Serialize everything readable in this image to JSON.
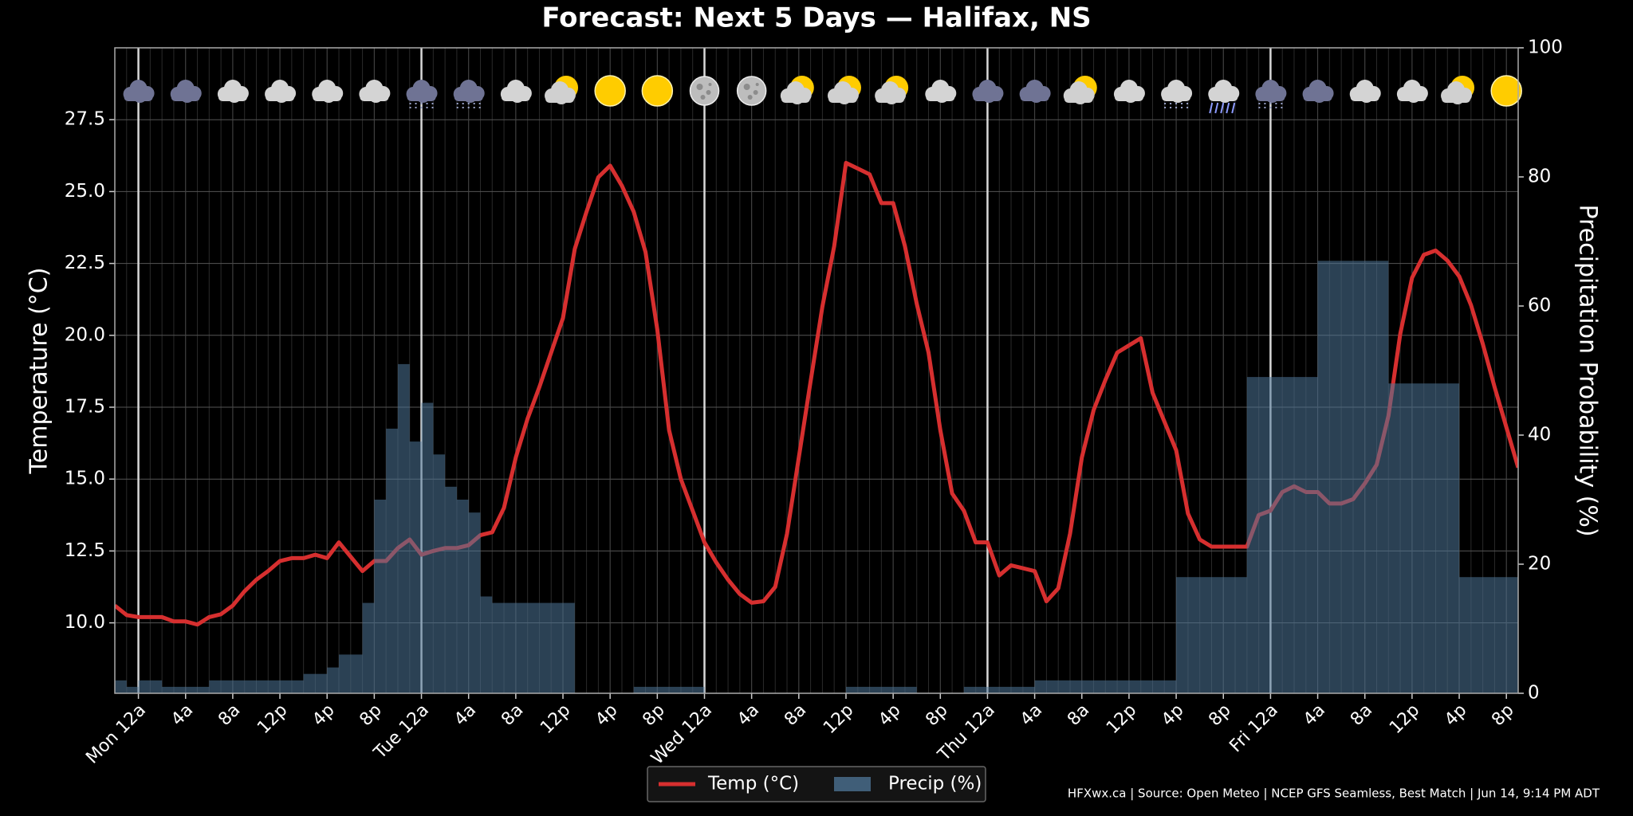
{
  "chart_data": {
    "type": "combo",
    "title": "Forecast: Next 5 Days — Halifax, NS",
    "y_label": "Temperature (°C)",
    "y2_label": "Precipitation Probability (%)",
    "source": "HFXwx.ca | Source: Open Meteo | NCEP GFS Seamless, Best Match | Jun 14, 9:14 PM ADT",
    "x": [
      -2,
      -1,
      0,
      1,
      2,
      3,
      4,
      5,
      6,
      7,
      8,
      9,
      10,
      11,
      12,
      13,
      14,
      15,
      16,
      17,
      18,
      19,
      20,
      21,
      22,
      23,
      24,
      25,
      26,
      27,
      28,
      29,
      30,
      31,
      32,
      33,
      34,
      35,
      36,
      37,
      38,
      39,
      40,
      41,
      42,
      43,
      44,
      45,
      46,
      47,
      48,
      49,
      50,
      51,
      52,
      53,
      54,
      55,
      56,
      57,
      58,
      59,
      60,
      61,
      62,
      63,
      64,
      65,
      66,
      67,
      68,
      69,
      70,
      71,
      72,
      73,
      74,
      75,
      76,
      77,
      78,
      79,
      80,
      81,
      82,
      83,
      84,
      85,
      86,
      87,
      88,
      89,
      90,
      91,
      92,
      93,
      94,
      95,
      96,
      97,
      98,
      99,
      100,
      101,
      102,
      103,
      104,
      105,
      106,
      107,
      108,
      109,
      110,
      111,
      112,
      113,
      114,
      115,
      116,
      117
    ],
    "xlim": [
      -2,
      117
    ],
    "xticks": [
      {
        "value": 0,
        "label": "Mon 12a"
      },
      {
        "value": 4,
        "label": "4a"
      },
      {
        "value": 8,
        "label": "8a"
      },
      {
        "value": 12,
        "label": "12p"
      },
      {
        "value": 16,
        "label": "4p"
      },
      {
        "value": 20,
        "label": "8p"
      },
      {
        "value": 24,
        "label": "Tue 12a"
      },
      {
        "value": 28,
        "label": "4a"
      },
      {
        "value": 32,
        "label": "8a"
      },
      {
        "value": 36,
        "label": "12p"
      },
      {
        "value": 40,
        "label": "4p"
      },
      {
        "value": 44,
        "label": "8p"
      },
      {
        "value": 48,
        "label": "Wed 12a"
      },
      {
        "value": 52,
        "label": "4a"
      },
      {
        "value": 56,
        "label": "8a"
      },
      {
        "value": 60,
        "label": "12p"
      },
      {
        "value": 64,
        "label": "4p"
      },
      {
        "value": 68,
        "label": "8p"
      },
      {
        "value": 72,
        "label": "Thu 12a"
      },
      {
        "value": 76,
        "label": "4a"
      },
      {
        "value": 80,
        "label": "8a"
      },
      {
        "value": 84,
        "label": "12p"
      },
      {
        "value": 88,
        "label": "4p"
      },
      {
        "value": 92,
        "label": "8p"
      },
      {
        "value": 96,
        "label": "Fri 12a"
      },
      {
        "value": 100,
        "label": "4a"
      },
      {
        "value": 104,
        "label": "8a"
      },
      {
        "value": 108,
        "label": "12p"
      },
      {
        "value": 112,
        "label": "4p"
      },
      {
        "value": 116,
        "label": "8p"
      }
    ],
    "day_lines": [
      0,
      24,
      48,
      72,
      96
    ],
    "ylim": [
      7.55,
      30.0
    ],
    "yticks": [
      {
        "value": 10,
        "label": "10.0"
      },
      12.5,
      {
        "value": 15,
        "label": "15.0"
      },
      17.5,
      {
        "value": 20,
        "label": "20.0"
      },
      22.5,
      {
        "value": 25,
        "label": "25.0"
      },
      27.5
    ],
    "y2lim": [
      0,
      100
    ],
    "y2ticks": [
      0,
      20,
      40,
      60,
      80,
      100
    ],
    "grid": true,
    "legend": "bottom",
    "series": [
      {
        "name": "Temp (°C)",
        "type": "line",
        "color": "#d62f2f",
        "values": [
          10.6,
          10.27,
          10.2,
          10.2,
          10.2,
          10.05,
          10.05,
          9.94,
          10.2,
          10.3,
          10.6,
          11.1,
          11.5,
          11.8,
          12.15,
          12.25,
          12.25,
          12.37,
          12.25,
          12.8,
          12.3,
          11.8,
          12.15,
          12.15,
          12.6,
          12.9,
          12.37,
          12.5,
          12.6,
          12.6,
          12.7,
          13.05,
          13.15,
          14.0,
          15.75,
          17.1,
          18.2,
          19.4,
          20.6,
          23.0,
          24.3,
          25.5,
          25.9,
          25.2,
          24.3,
          22.9,
          20.2,
          16.7,
          15.0,
          13.9,
          12.8,
          12.1,
          11.5,
          11.0,
          10.7,
          10.75,
          11.25,
          13.1,
          15.75,
          18.4,
          21.0,
          23.1,
          26.0,
          25.8,
          25.6,
          24.6,
          24.6,
          23.1,
          21.1,
          19.4,
          16.7,
          14.5,
          13.9,
          12.8,
          12.8,
          11.65,
          12.0,
          11.9,
          11.8,
          10.75,
          11.2,
          13.1,
          15.75,
          17.4,
          18.45,
          19.4,
          19.65,
          19.9,
          18.0,
          17.0,
          16.0,
          13.8,
          12.9,
          12.65,
          12.65,
          12.65,
          12.65,
          13.75,
          13.9,
          14.55,
          14.75,
          14.55,
          14.55,
          14.15,
          14.15,
          14.3,
          14.85,
          15.5,
          17.2,
          20.05,
          22.0,
          22.8,
          22.95,
          22.6,
          22.05,
          21.05,
          19.7,
          18.2,
          16.8,
          15.4
        ]
      },
      {
        "name": "Precip (%)",
        "type": "bar",
        "axis": "y2",
        "color": "#4f7799",
        "values": [
          2,
          1,
          2,
          2,
          1,
          1,
          1,
          1,
          2,
          2,
          2,
          2,
          2,
          2,
          2,
          2,
          3,
          3,
          4,
          6,
          6,
          14,
          30,
          41,
          51,
          39,
          45,
          37,
          32,
          30,
          28,
          15,
          14,
          14,
          14,
          14,
          14,
          14,
          14,
          0,
          0,
          0,
          0,
          0,
          1,
          1,
          1,
          1,
          1,
          1,
          0,
          0,
          0,
          0,
          0,
          0,
          0,
          0,
          0,
          0,
          0,
          0,
          1,
          1,
          1,
          1,
          1,
          1,
          0,
          0,
          0,
          0,
          1,
          1,
          1,
          1,
          1,
          1,
          2,
          2,
          2,
          2,
          2,
          2,
          2,
          2,
          2,
          2,
          2,
          2,
          18,
          18,
          18,
          18,
          18,
          18,
          49,
          49,
          49,
          49,
          49,
          49,
          67,
          67,
          67,
          67,
          67,
          67,
          48,
          48,
          48,
          48,
          48,
          48,
          18,
          18,
          18,
          18,
          18,
          18
        ]
      }
    ]
  }
}
